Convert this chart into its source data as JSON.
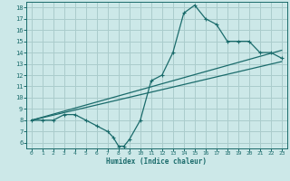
{
  "xlabel": "Humidex (Indice chaleur)",
  "bg_color": "#cce8e8",
  "grid_color": "#aacccc",
  "line_color": "#1a6b6b",
  "xlim": [
    -0.5,
    23.5
  ],
  "ylim": [
    5.5,
    18.5
  ],
  "xticks": [
    0,
    1,
    2,
    3,
    4,
    5,
    6,
    7,
    8,
    9,
    10,
    11,
    12,
    13,
    14,
    15,
    16,
    17,
    18,
    19,
    20,
    21,
    22,
    23
  ],
  "yticks": [
    6,
    7,
    8,
    9,
    10,
    11,
    12,
    13,
    14,
    15,
    16,
    17,
    18
  ],
  "curve1_x": [
    0,
    1,
    2,
    3,
    4,
    5,
    6,
    7,
    7.5,
    8,
    8.5,
    9,
    10,
    11,
    12,
    13,
    14,
    15,
    16,
    17,
    18,
    19,
    20,
    21,
    22,
    23
  ],
  "curve1_y": [
    8.0,
    8.0,
    8.0,
    8.5,
    8.5,
    8.0,
    7.5,
    7.0,
    6.5,
    5.7,
    5.7,
    6.3,
    8.0,
    11.5,
    12.0,
    14.0,
    17.5,
    18.2,
    17.0,
    16.5,
    15.0,
    15.0,
    15.0,
    14.0,
    14.0,
    13.5
  ],
  "line1_x": [
    0,
    23
  ],
  "line1_y": [
    8.0,
    13.2
  ],
  "line2_x": [
    0,
    23
  ],
  "line2_y": [
    8.0,
    14.2
  ]
}
